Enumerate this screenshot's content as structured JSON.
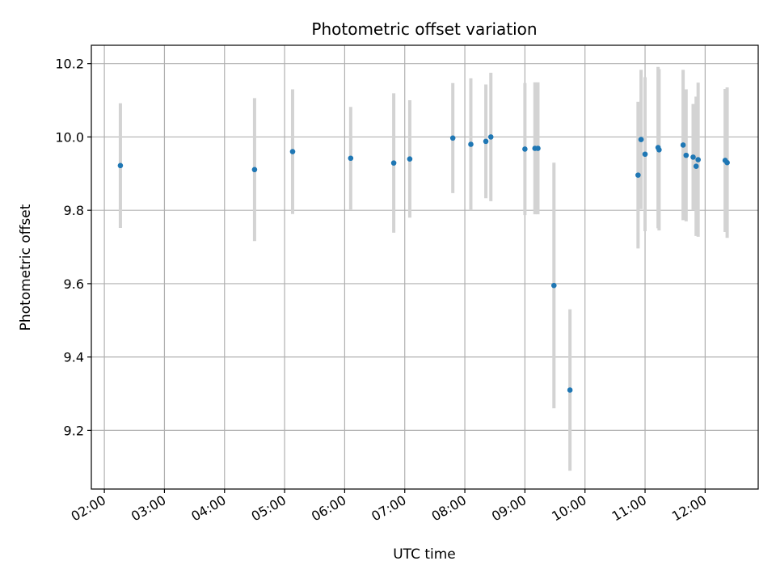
{
  "chart_data": {
    "type": "scatter",
    "title": "Photometric offset variation",
    "xlabel": "UTC time",
    "ylabel": "Photometric offset",
    "x_tick_labels": [
      "02:00",
      "03:00",
      "04:00",
      "05:00",
      "06:00",
      "07:00",
      "08:00",
      "09:00",
      "10:00",
      "11:00",
      "12:00"
    ],
    "y_tick_labels": [
      "9.2",
      "9.4",
      "9.6",
      "9.8",
      "10.0",
      "10.2"
    ],
    "y_ticks": [
      9.2,
      9.4,
      9.6,
      9.8,
      10.0,
      10.2
    ],
    "xlim": [
      "01:47",
      "12:53"
    ],
    "ylim": [
      9.04,
      10.25
    ],
    "grid": true,
    "colors": {
      "point": "#1f77b4",
      "errorbar": "#d3d3d3",
      "grid": "#b0b0b0"
    },
    "series": [
      {
        "points": [
          {
            "x": "02:16",
            "y": 9.922,
            "err": 0.17
          },
          {
            "x": "04:30",
            "y": 9.911,
            "err": 0.195
          },
          {
            "x": "05:08",
            "y": 9.96,
            "err": 0.17
          },
          {
            "x": "06:06",
            "y": 9.942,
            "err": 0.14
          },
          {
            "x": "06:49",
            "y": 9.929,
            "err": 0.19
          },
          {
            "x": "07:05",
            "y": 9.94,
            "err": 0.16
          },
          {
            "x": "07:48",
            "y": 9.997,
            "err": 0.15
          },
          {
            "x": "08:06",
            "y": 9.98,
            "err": 0.18
          },
          {
            "x": "08:21",
            "y": 9.988,
            "err": 0.155
          },
          {
            "x": "08:26",
            "y": 10.0,
            "err": 0.175
          },
          {
            "x": "09:00",
            "y": 9.967,
            "err": 0.18
          },
          {
            "x": "09:10",
            "y": 9.969,
            "err": 0.18
          },
          {
            "x": "09:13",
            "y": 9.969,
            "err": 0.18
          },
          {
            "x": "09:29",
            "y": 9.595,
            "err": 0.335
          },
          {
            "x": "09:45",
            "y": 9.31,
            "err": 0.22
          },
          {
            "x": "10:53",
            "y": 9.896,
            "err": 0.2
          },
          {
            "x": "10:56",
            "y": 9.993,
            "err": 0.19
          },
          {
            "x": "11:00",
            "y": 9.953,
            "err": 0.21
          },
          {
            "x": "11:13",
            "y": 9.971,
            "err": 0.22
          },
          {
            "x": "11:14",
            "y": 9.965,
            "err": 0.22
          },
          {
            "x": "11:38",
            "y": 9.978,
            "err": 0.205
          },
          {
            "x": "11:41",
            "y": 9.95,
            "err": 0.18
          },
          {
            "x": "11:48",
            "y": 9.945,
            "err": 0.145
          },
          {
            "x": "11:51",
            "y": 9.92,
            "err": 0.19
          },
          {
            "x": "11:53",
            "y": 9.938,
            "err": 0.21
          },
          {
            "x": "12:20",
            "y": 9.936,
            "err": 0.195
          },
          {
            "x": "12:22",
            "y": 9.93,
            "err": 0.205
          }
        ]
      }
    ]
  }
}
